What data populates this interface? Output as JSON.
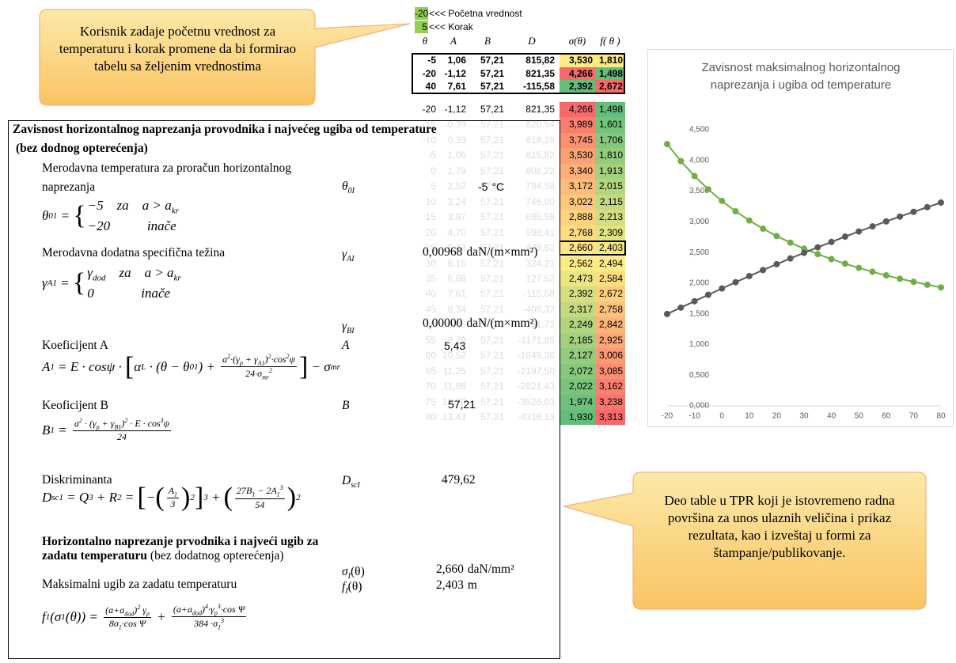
{
  "inputs": {
    "start": "-20",
    "start_label": "<<< Početna vrednost",
    "step": "5",
    "step_label": "<<< Korak"
  },
  "table": {
    "header": [
      "θ",
      "A",
      "B",
      "D",
      "σ(θ)",
      "f( θ )"
    ],
    "highlight_rows": [
      [
        "-5",
        "1,06",
        "57,21",
        "815,82",
        "3,530",
        "1,810"
      ],
      [
        "-20",
        "-1,12",
        "57,21",
        "821,35",
        "4,266",
        "1,498"
      ],
      [
        "40",
        "7,61",
        "57,21",
        "-115,58",
        "2,392",
        "2,672"
      ]
    ],
    "rows": [
      [
        "-20",
        "-1,12",
        "57,21",
        "821,35",
        "4,266",
        "1,498"
      ],
      [
        "-15",
        "-0,39",
        "57,21",
        "820,54",
        "3,989",
        "1,601"
      ],
      [
        "-10",
        "0,33",
        "57,21",
        "818,28",
        "3,745",
        "1,706"
      ],
      [
        "-5",
        "1,06",
        "57,21",
        "815,82",
        "3,530",
        "1,810"
      ],
      [
        "0",
        "1,79",
        "57,21",
        "806,22",
        "3,340",
        "1,913"
      ],
      [
        "5",
        "2,52",
        "57,21",
        "784,58",
        "3,172",
        "2,015"
      ],
      [
        "10",
        "3,24",
        "57,21",
        "746,00",
        "3,022",
        "2,115"
      ],
      [
        "15",
        "3,97",
        "57,21",
        "685,58",
        "2,888",
        "2,213"
      ],
      [
        "20",
        "4,70",
        "57,21",
        "598,41",
        "2,768",
        "2,309"
      ],
      [
        "25",
        "5,43",
        "57,21",
        "479,62",
        "2,660",
        "2,403"
      ],
      [
        "30",
        "6,15",
        "57,21",
        "324,21",
        "2,562",
        "2,494"
      ],
      [
        "35",
        "6,88",
        "57,21",
        "127,52",
        "2,473",
        "2,584"
      ],
      [
        "40",
        "7,61",
        "57,21",
        "-115,58",
        "2,392",
        "2,672"
      ],
      [
        "45",
        "8,34",
        "57,21",
        "-409,37",
        "2,317",
        "2,758"
      ],
      [
        "50",
        "9,06",
        "57,21",
        "-761,73",
        "2,249",
        "2,842"
      ],
      [
        "55",
        "9,79",
        "57,21",
        "-1171,85",
        "2,185",
        "2,925"
      ],
      [
        "60",
        "10,52",
        "57,21",
        "-1649,26",
        "2,127",
        "3,006"
      ],
      [
        "65",
        "11,25",
        "57,21",
        "-2197,50",
        "2,072",
        "3,085"
      ],
      [
        "70",
        "11,98",
        "57,21",
        "-2821,43",
        "2,022",
        "3,162"
      ],
      [
        "75",
        "12,70",
        "57,21",
        "-3526,03",
        "1,974",
        "3,238"
      ],
      [
        "80",
        "13,43",
        "57,21",
        "-4316,13",
        "1,930",
        "3,313"
      ]
    ],
    "selected_row": 9
  },
  "report": {
    "title": "Zavisnost horizontalnog naprezanja provodnika i najvećeg ugiba od temperature",
    "subtitle": "(bez dodnog opterećenja)",
    "temp": {
      "label": "Merodavna temperatura za proračun horizontalnog naprezanja",
      "symbol": "θ",
      "symbol_sub": "0I",
      "value": "-5",
      "unit": "°C",
      "formula": [
        {
          "t": "θ"
        },
        {
          "sub": "01"
        },
        {
          "t": " = "
        },
        {
          "big": "{"
        },
        {
          "cases": [
            [
              {
                "t": "−5    za    a > a"
              },
              {
                "sub": "kr"
              }
            ],
            [
              {
                "t": "−20           inače"
              }
            ]
          ]
        }
      ]
    },
    "gamma_a": {
      "label": "Merodavna dodatna specifična težina",
      "symbol": "γ",
      "symbol_sub": "AI",
      "value": "0,00968",
      "unit": "daN/(m×mm²)",
      "formula": [
        {
          "t": "γ"
        },
        {
          "sub": "A1"
        },
        {
          "t": " = "
        },
        {
          "big": "{"
        },
        {
          "cases": [
            [
              {
                "t": "γ"
              },
              {
                "sub": "dod"
              },
              {
                "t": "    za    a > a"
              },
              {
                "sub": "kr"
              }
            ],
            [
              {
                "t": "0              inače"
              }
            ]
          ]
        }
      ]
    },
    "gamma_b": {
      "symbol": "γ",
      "symbol_sub": "BI",
      "value": "0,00000",
      "unit": "daN/(m×mm²)"
    },
    "coef_a": {
      "label": "Koeficijent A",
      "symbol": "A",
      "value": "5,43",
      "formula": [
        {
          "t": "A"
        },
        {
          "sub": "1"
        },
        {
          "t": " = E · cosψ · "
        },
        {
          "big": "["
        },
        {
          "t": "α"
        },
        {
          "sub": "L"
        },
        {
          "t": " · (θ − θ"
        },
        {
          "sub": "01"
        },
        {
          "t": ") + "
        },
        {
          "frac": {
            "num": [
              {
                "t": "a"
              },
              {
                "sup": "2"
              },
              {
                "t": "·(γ"
              },
              {
                "sub": "p"
              },
              {
                "t": " + γ"
              },
              {
                "sub": "A1"
              },
              {
                "t": ")"
              },
              {
                "sup": "2"
              },
              {
                "t": "·cos"
              },
              {
                "sup": "2"
              },
              {
                "t": "ψ"
              }
            ],
            "den": [
              {
                "t": "24·σ"
              },
              {
                "sub": "mr"
              },
              {
                "sup": "2"
              }
            ]
          }
        },
        {
          "big": "]"
        },
        {
          "t": " − σ"
        },
        {
          "sub": "mr"
        }
      ]
    },
    "coef_b": {
      "label": "Keoficijent B",
      "symbol": "B",
      "value": "57,21",
      "formula": [
        {
          "t": "B"
        },
        {
          "sub": "1"
        },
        {
          "t": " = "
        },
        {
          "frac": {
            "num": [
              {
                "t": "a"
              },
              {
                "sup": "2"
              },
              {
                "t": " · (γ"
              },
              {
                "sub": "p"
              },
              {
                "t": " + γ"
              },
              {
                "sub": "B1"
              },
              {
                "t": ")"
              },
              {
                "sup": "2"
              },
              {
                "t": " · E · cos"
              },
              {
                "sup": "3"
              },
              {
                "t": "ψ"
              }
            ],
            "den": [
              {
                "t": "24"
              }
            ]
          }
        }
      ]
    },
    "disc": {
      "label": "Diskriminanta",
      "symbol": "D",
      "symbol_sub": "scI",
      "value": "479,62",
      "formula": [
        {
          "t": "D"
        },
        {
          "sub": "sc1"
        },
        {
          "t": " = Q"
        },
        {
          "sup": "3"
        },
        {
          "t": " + R"
        },
        {
          "sup": "2"
        },
        {
          "t": " = "
        },
        {
          "big": "["
        },
        {
          "t": "−"
        },
        {
          "big": "("
        },
        {
          "frac": {
            "num": [
              {
                "t": "A"
              },
              {
                "sub": "1"
              }
            ],
            "den": [
              {
                "t": "3"
              }
            ]
          }
        },
        {
          "big": ")"
        },
        {
          "sup": "2"
        },
        {
          "big": "]"
        },
        {
          "sup": "3"
        },
        {
          "t": " + "
        },
        {
          "big": "("
        },
        {
          "frac": {
            "num": [
              {
                "t": "27B"
              },
              {
                "sub": "1"
              },
              {
                "t": " − 2A"
              },
              {
                "sub": "1"
              },
              {
                "sup": "3"
              }
            ],
            "den": [
              {
                "t": "54"
              }
            ]
          }
        },
        {
          "big": ")"
        },
        {
          "sup": "2"
        }
      ]
    },
    "sigma": {
      "label_bold": "Horizontalno naprezanje prvodnika i najveći ugib za zadatu temperaturu",
      "label": "(bez dodatnog opterećenja)",
      "symbol": "σ",
      "symbol_sub": "I",
      "symbol_arg": "(θ)",
      "value": "2,660",
      "unit": "daN/mm²"
    },
    "deflection": {
      "label": "Maksimalni ugib za zadatu temperaturu",
      "symbol": "f",
      "symbol_sub": "I",
      "symbol_arg": "(θ)",
      "value": "2,403",
      "unit": "m",
      "formula": [
        {
          "t": "f"
        },
        {
          "sub": "1"
        },
        {
          "t": "(σ"
        },
        {
          "sub": "1"
        },
        {
          "t": "(θ)) = "
        },
        {
          "frac": {
            "num": [
              {
                "t": "(a+a"
              },
              {
                "sub": "dod"
              },
              {
                "t": ")"
              },
              {
                "sup": "2"
              },
              {
                "t": " γ"
              },
              {
                "sub": "p"
              }
            ],
            "den": [
              {
                "t": "8σ"
              },
              {
                "sub": "1"
              },
              {
                "t": "·cos Ψ"
              }
            ]
          }
        },
        {
          "t": " + "
        },
        {
          "frac": {
            "num": [
              {
                "t": "(a+a"
              },
              {
                "sub": "dod"
              },
              {
                "t": ")"
              },
              {
                "sup": "4"
              },
              {
                "t": "·γ"
              },
              {
                "sub": "p"
              },
              {
                "sup": "3"
              },
              {
                "t": "·cos Ψ"
              }
            ],
            "den": [
              {
                "t": "384 ·σ"
              },
              {
                "sub": "1"
              },
              {
                "sup": "3"
              }
            ]
          }
        }
      ]
    }
  },
  "callouts": [
    "Korisnik zadaje početnu vrednost za temperaturu i korak promene da bi formirao tabelu sa željenim vrednostima",
    "Deo table u TPR koji je istovremeno radna površina za unos ulaznih veličina i prikaz rezultata, kao i izveštaj u formi za štampanje/publikovanje."
  ],
  "chart_data": {
    "type": "line",
    "title": "Zavisnost maksimalnog horizontalnog naprezanja i ugiba od temperature",
    "x": [
      -20,
      -15,
      -10,
      -5,
      0,
      5,
      10,
      15,
      20,
      25,
      30,
      35,
      40,
      45,
      50,
      55,
      60,
      65,
      70,
      75,
      80
    ],
    "series": [
      {
        "color": "#70ad47",
        "values": [
          4.266,
          3.989,
          3.745,
          3.53,
          3.34,
          3.172,
          3.022,
          2.888,
          2.768,
          2.66,
          2.562,
          2.473,
          2.392,
          2.317,
          2.249,
          2.185,
          2.127,
          2.072,
          2.022,
          1.974,
          1.93
        ]
      },
      {
        "color": "#595959",
        "values": [
          1.498,
          1.601,
          1.706,
          1.81,
          1.913,
          2.015,
          2.115,
          2.213,
          2.309,
          2.403,
          2.494,
          2.584,
          2.672,
          2.758,
          2.842,
          2.925,
          3.006,
          3.085,
          3.162,
          3.238,
          3.313
        ]
      }
    ],
    "xlim": [
      -20,
      80
    ],
    "xticks": [
      -20,
      -10,
      0,
      10,
      20,
      30,
      40,
      50,
      60,
      70,
      80
    ],
    "ylim": [
      0,
      4.5
    ],
    "yticks": [
      {
        "value": 0,
        "label": "0,000"
      },
      {
        "value": 0.5,
        "label": "0,500"
      },
      {
        "value": 1,
        "label": "1,000"
      },
      {
        "value": 1.5,
        "label": "1,500"
      },
      {
        "value": 2,
        "label": "2,000"
      },
      {
        "value": 2.5,
        "label": "2,500"
      },
      {
        "value": 3,
        "label": "3,000"
      },
      {
        "value": 3.5,
        "label": "3,500"
      },
      {
        "value": 4,
        "label": "4,000"
      },
      {
        "value": 4.5,
        "label": "4,500"
      }
    ],
    "grid": false
  }
}
